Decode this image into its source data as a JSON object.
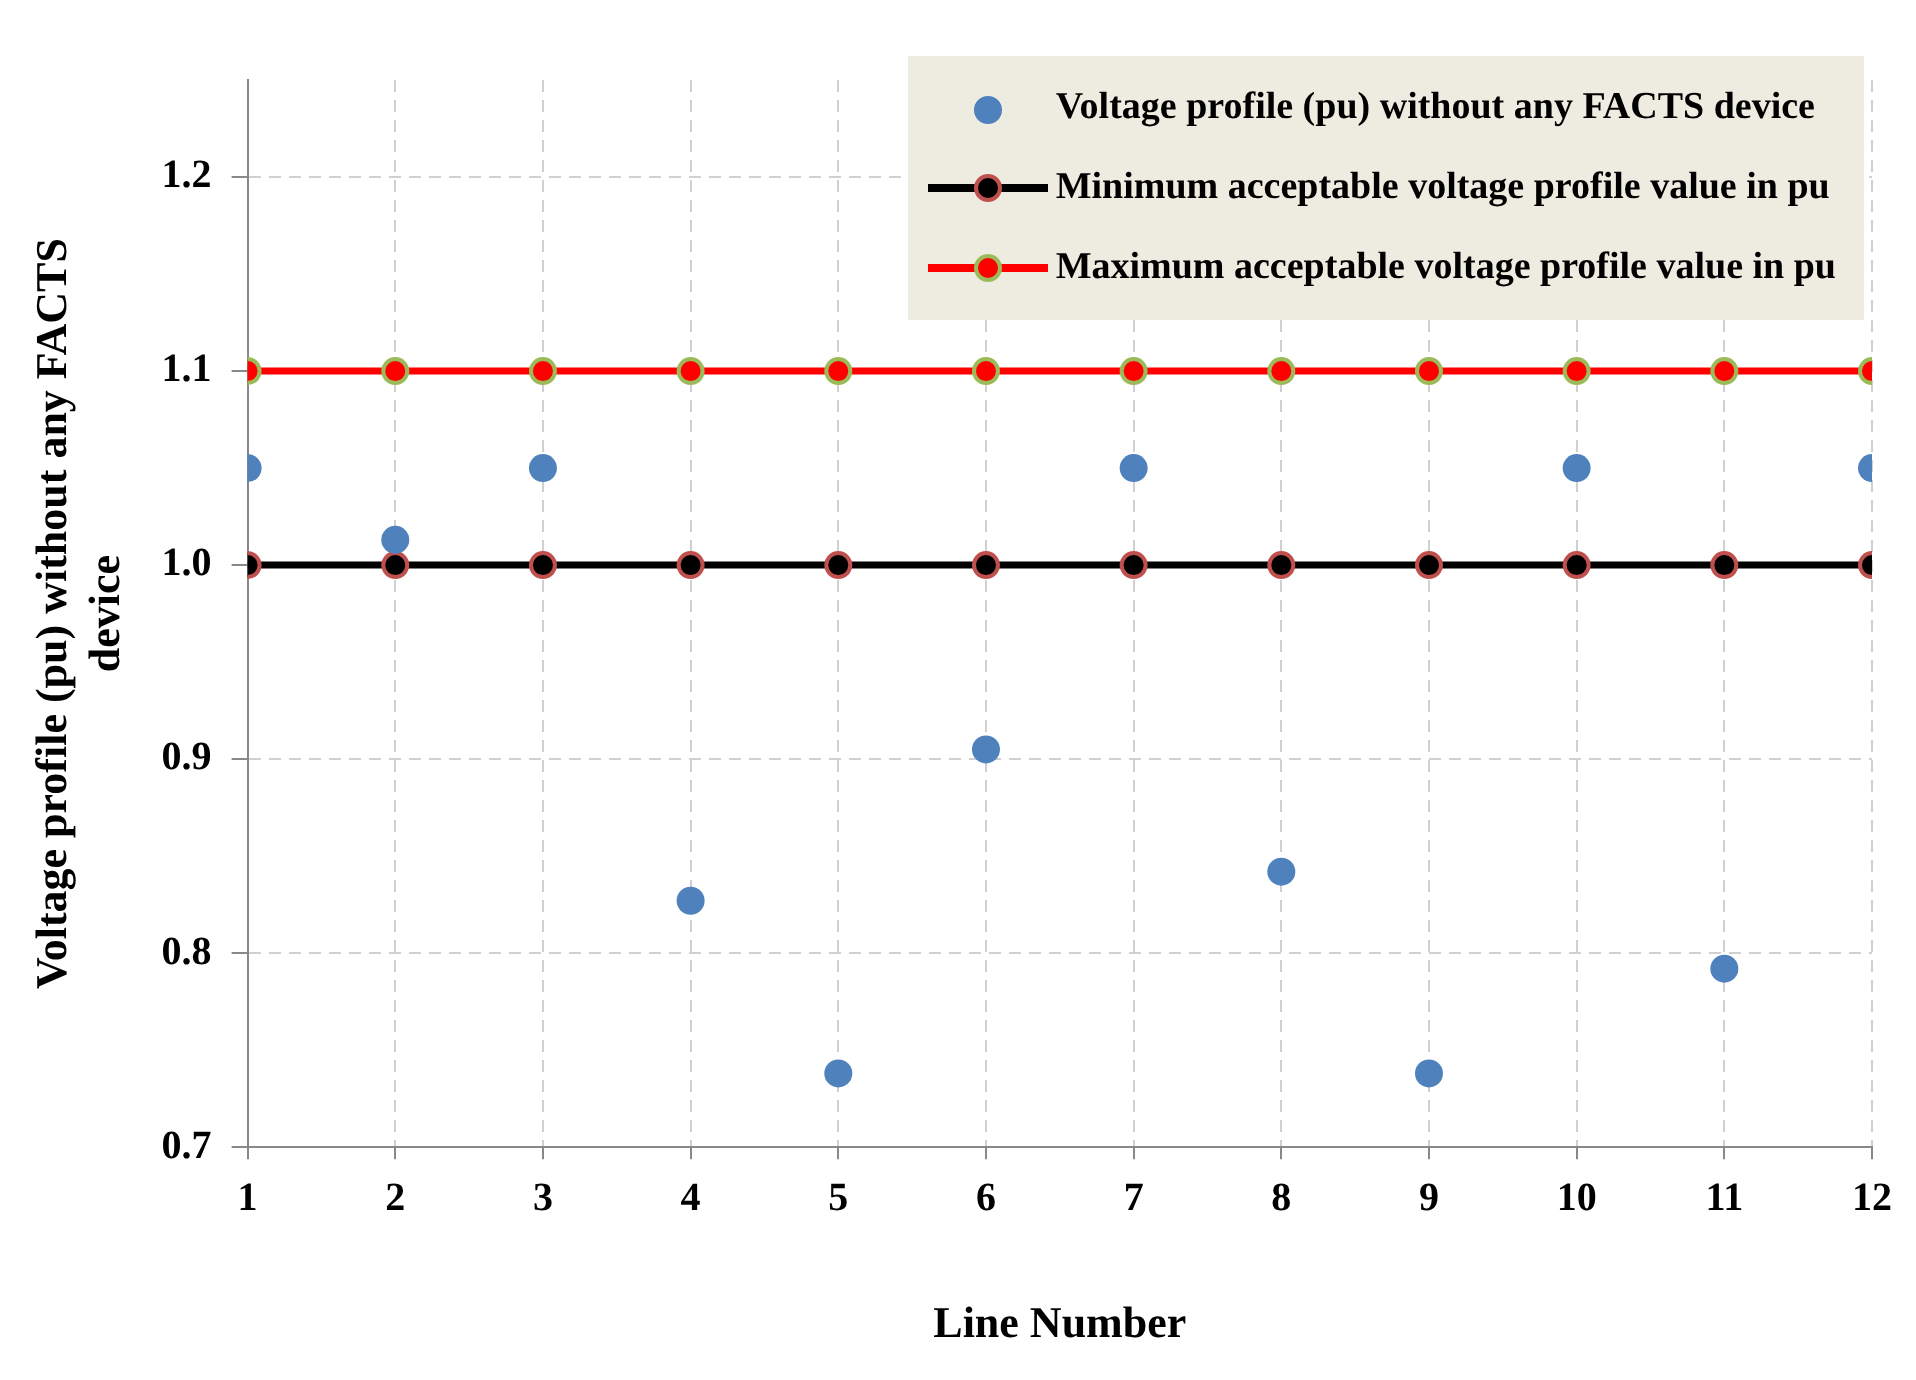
{
  "chart_data": {
    "type": "line",
    "xlabel": "Line Number",
    "ylabel": "Voltage profile (pu) without any FACTS device",
    "x": [
      1,
      2,
      3,
      4,
      5,
      6,
      7,
      8,
      9,
      10,
      11,
      12
    ],
    "xlim": [
      1,
      12
    ],
    "xticks": [
      1,
      2,
      3,
      4,
      5,
      6,
      7,
      8,
      9,
      10,
      11,
      12
    ],
    "ylim": [
      0.7,
      1.25
    ],
    "yticks": [
      0.7,
      0.8,
      0.9,
      {
        "value": 1,
        "label": "1.0"
      },
      1.1,
      1.2
    ],
    "grid": true,
    "legend": "top right",
    "marker": "circle",
    "line_style": "solid",
    "series": [
      {
        "name": "Voltage profile (pu) without any FACTS device",
        "type": "scatter",
        "color": "#4f81bd",
        "values": [
          1.05,
          1.013,
          1.05,
          0.827,
          0.738,
          0.905,
          1.05,
          0.842,
          0.738,
          1.05,
          0.792,
          1.05
        ]
      },
      {
        "name": "Minimum acceptable voltage profile  value in pu",
        "type": "line",
        "color": "#000000",
        "values": [
          1.0,
          1.0,
          1.0,
          1.0,
          1.0,
          1.0,
          1.0,
          1.0,
          1.0,
          1.0,
          1.0,
          1.0
        ]
      },
      {
        "name": "Maximum acceptable voltage profile  value in pu",
        "type": "line",
        "color": "#ff0000",
        "values": [
          1.1,
          1.1,
          1.1,
          1.1,
          1.1,
          1.1,
          1.1,
          1.1,
          1.1,
          1.1,
          1.1,
          1.1
        ]
      }
    ]
  }
}
